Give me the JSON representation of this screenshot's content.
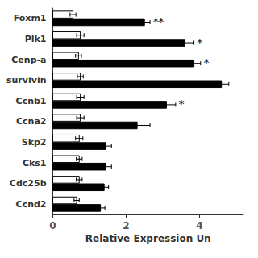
{
  "chart_data": {
    "type": "bar",
    "orientation": "horizontal",
    "categories": [
      "Foxm1",
      "Plk1",
      "Cenp-a",
      "survivin",
      "Ccnb1",
      "Ccna2",
      "Skp2",
      "Cks1",
      "Cdc25b",
      "Ccnd2"
    ],
    "series": [
      {
        "color": "#ffffff",
        "values": [
          0.55,
          0.75,
          0.7,
          0.75,
          0.75,
          0.75,
          0.72,
          0.72,
          0.72,
          0.65
        ],
        "errors": [
          0.08,
          0.1,
          0.08,
          0.08,
          0.1,
          0.1,
          0.1,
          0.08,
          0.08,
          0.07
        ]
      },
      {
        "color": "#000000",
        "values": [
          2.5,
          3.6,
          3.85,
          4.6,
          3.1,
          2.3,
          1.45,
          1.45,
          1.4,
          1.3
        ],
        "errors": [
          0.15,
          0.25,
          0.18,
          0.2,
          0.25,
          0.35,
          0.15,
          0.15,
          0.12,
          0.12
        ],
        "annotations": [
          "**",
          "*",
          "*",
          null,
          "*",
          null,
          null,
          null,
          null,
          null
        ]
      }
    ],
    "xlabel": "Relative Expression Un",
    "xlim": [
      0,
      5.2
    ],
    "xticks": [
      0,
      2,
      4
    ],
    "grid": false
  }
}
